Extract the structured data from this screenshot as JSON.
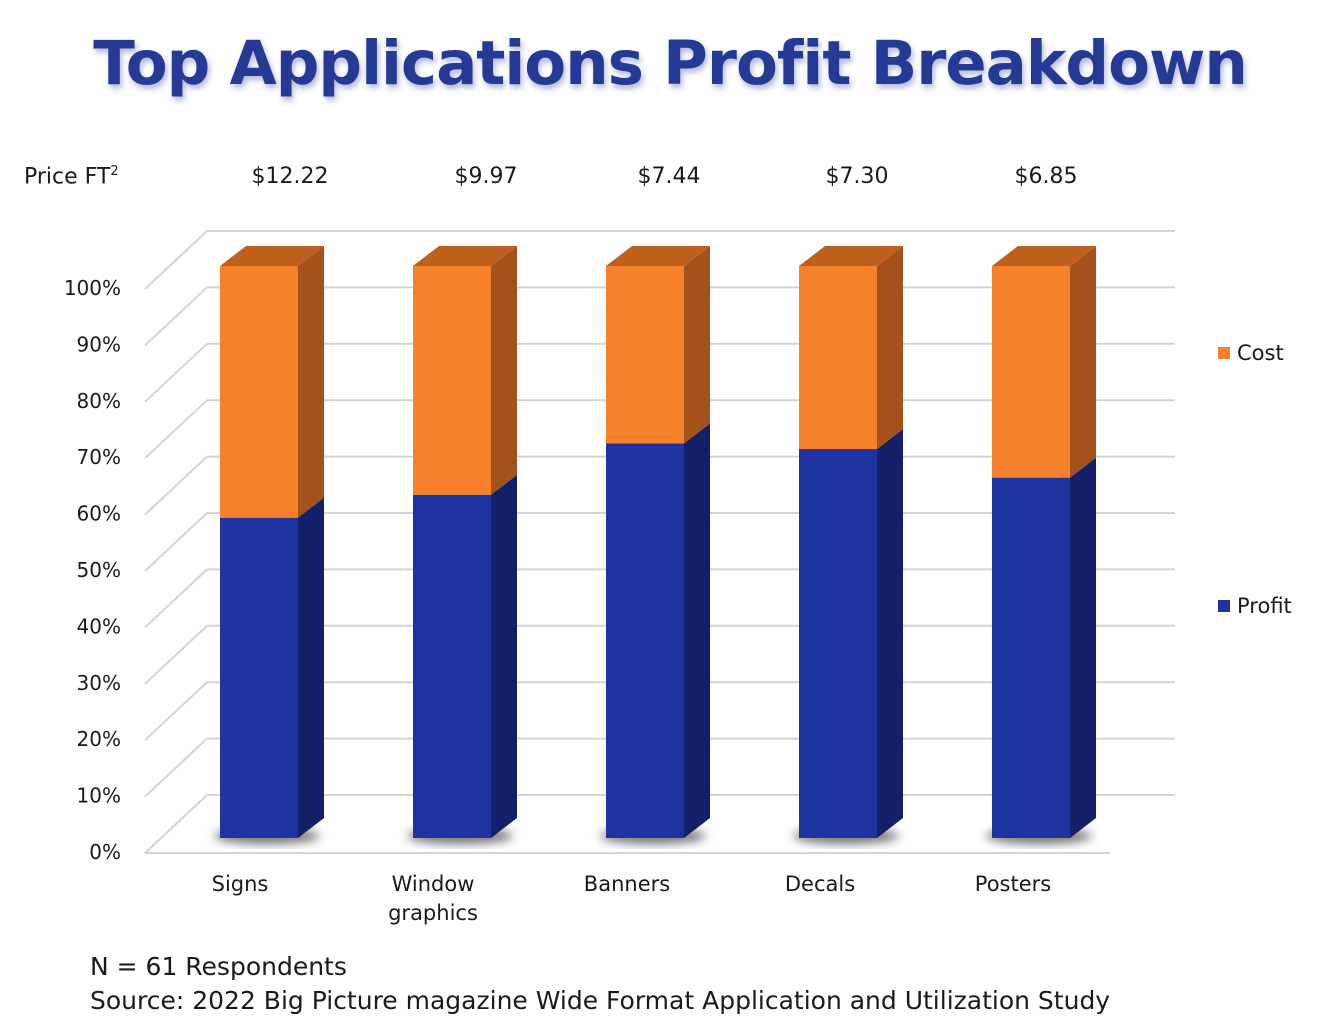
{
  "title": "Top Applications Profit Breakdown",
  "price_row": {
    "label": "Price FT",
    "label_superscript": "2",
    "values": [
      "$12.22",
      "$9.97",
      "$7.44",
      "$7.30",
      "$6.85"
    ]
  },
  "footer": {
    "n_line": "N = 61  Respondents",
    "source_line": "Source: 2022 Big Picture magazine Wide Format Application and Utilization Study"
  },
  "chart_data": {
    "type": "bar",
    "stacked": true,
    "percent_stacked": true,
    "three_d": true,
    "title": "Top Applications Profit Breakdown",
    "categories": [
      "Signs",
      "Window graphics",
      "Banners",
      "Decals",
      "Posters"
    ],
    "category_lines": [
      [
        "Signs"
      ],
      [
        "Window",
        "graphics"
      ],
      [
        "Banners"
      ],
      [
        "Decals"
      ],
      [
        "Posters"
      ]
    ],
    "series": [
      {
        "name": "Profit",
        "color": "#1e33a0",
        "side_color": "#131f66",
        "values": [
          56,
          60,
          69,
          68,
          63
        ]
      },
      {
        "name": "Cost",
        "color": "#f7802a",
        "side_color": "#a3521c",
        "top_color": "#c0601f",
        "values": [
          44,
          40,
          31,
          32,
          37
        ]
      }
    ],
    "xlabel": "",
    "ylabel": "",
    "ylim": [
      0,
      100
    ],
    "yticks": [
      "0%",
      "10%",
      "20%",
      "30%",
      "40%",
      "50%",
      "60%",
      "70%",
      "80%",
      "90%",
      "100%"
    ],
    "grid": true,
    "legend": {
      "placement": "right",
      "entries": [
        "Cost",
        "Profit"
      ]
    }
  }
}
